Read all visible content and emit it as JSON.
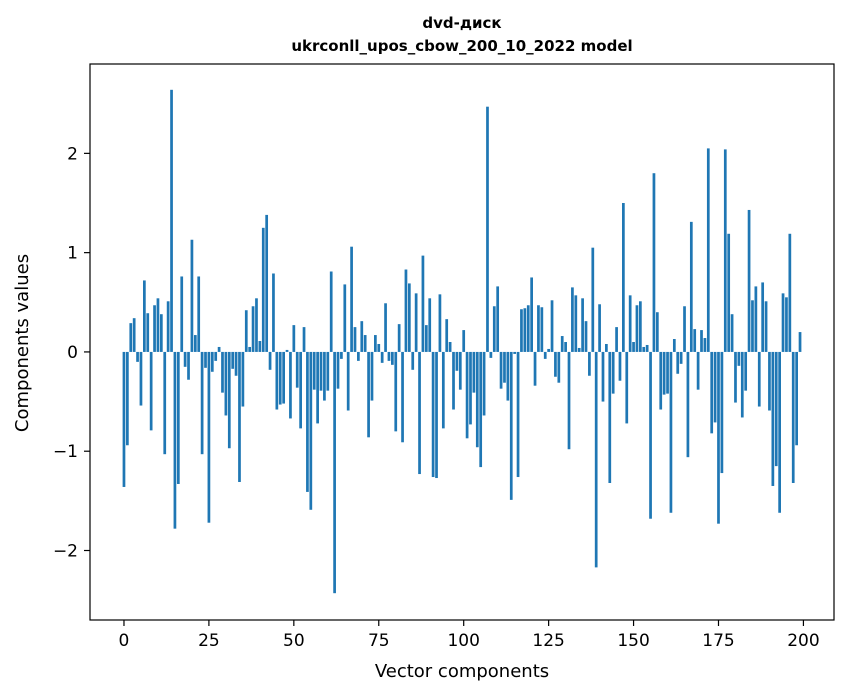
{
  "colors": {
    "bar": "#1f77b4",
    "axes": "#000000",
    "background": "#ffffff"
  },
  "chart_data": {
    "type": "bar",
    "title": "dvd-диск",
    "subtitle": "ukrconll_upos_cbow_200_10_2022 model",
    "xlabel": "Vector components",
    "ylabel": "Components values",
    "xlim": [
      -10,
      209
    ],
    "ylim": [
      -2.7,
      2.9
    ],
    "xticks": [
      0,
      25,
      50,
      75,
      100,
      125,
      150,
      175,
      200
    ],
    "yticks": [
      -2,
      -1,
      0,
      1,
      2
    ],
    "ytick_labels": [
      "−2",
      "−1",
      "0",
      "1",
      "2"
    ],
    "grid": false,
    "legend": "none",
    "x": [
      0,
      1,
      2,
      3,
      4,
      5,
      6,
      7,
      8,
      9,
      10,
      11,
      12,
      13,
      14,
      15,
      16,
      17,
      18,
      19,
      20,
      21,
      22,
      23,
      24,
      25,
      26,
      27,
      28,
      29,
      30,
      31,
      32,
      33,
      34,
      35,
      36,
      37,
      38,
      39,
      40,
      41,
      42,
      43,
      44,
      45,
      46,
      47,
      48,
      49,
      50,
      51,
      52,
      53,
      54,
      55,
      56,
      57,
      58,
      59,
      60,
      61,
      62,
      63,
      64,
      65,
      66,
      67,
      68,
      69,
      70,
      71,
      72,
      73,
      74,
      75,
      76,
      77,
      78,
      79,
      80,
      81,
      82,
      83,
      84,
      85,
      86,
      87,
      88,
      89,
      90,
      91,
      92,
      93,
      94,
      95,
      96,
      97,
      98,
      99,
      100,
      101,
      102,
      103,
      104,
      105,
      106,
      107,
      108,
      109,
      110,
      111,
      112,
      113,
      114,
      115,
      116,
      117,
      118,
      119,
      120,
      121,
      122,
      123,
      124,
      125,
      126,
      127,
      128,
      129,
      130,
      131,
      132,
      133,
      134,
      135,
      136,
      137,
      138,
      139,
      140,
      141,
      142,
      143,
      144,
      145,
      146,
      147,
      148,
      149,
      150,
      151,
      152,
      153,
      154,
      155,
      156,
      157,
      158,
      159,
      160,
      161,
      162,
      163,
      164,
      165,
      166,
      167,
      168,
      169,
      170,
      171,
      172,
      173,
      174,
      175,
      176,
      177,
      178,
      179,
      180,
      181,
      182,
      183,
      184,
      185,
      186,
      187,
      188,
      189,
      190,
      191,
      192,
      193,
      194,
      195,
      196,
      197,
      198,
      199
    ],
    "values": [
      -1.36,
      -0.94,
      0.29,
      0.34,
      -0.1,
      -0.54,
      0.72,
      0.39,
      -0.79,
      0.47,
      0.54,
      0.38,
      -1.03,
      0.51,
      2.64,
      -1.78,
      -1.33,
      0.76,
      -0.15,
      -0.28,
      1.13,
      0.17,
      0.76,
      -1.03,
      -0.16,
      -1.72,
      -0.2,
      -0.09,
      0.05,
      -0.41,
      -0.64,
      -0.97,
      -0.17,
      -0.24,
      -1.31,
      -0.55,
      0.42,
      0.05,
      0.46,
      0.54,
      0.11,
      1.25,
      1.38,
      -0.18,
      0.79,
      -0.58,
      -0.53,
      -0.52,
      0.02,
      -0.67,
      0.27,
      -0.36,
      -0.77,
      0.25,
      -1.41,
      -1.59,
      -0.38,
      -0.72,
      -0.39,
      -0.49,
      -0.39,
      0.81,
      -2.43,
      -0.37,
      -0.07,
      0.68,
      -0.59,
      1.06,
      0.25,
      -0.09,
      0.31,
      0.17,
      -0.86,
      -0.49,
      0.17,
      0.08,
      -0.11,
      0.49,
      -0.09,
      -0.13,
      -0.8,
      0.28,
      -0.91,
      0.83,
      0.69,
      -0.18,
      0.59,
      -1.23,
      0.97,
      0.27,
      0.54,
      -1.26,
      -1.27,
      0.58,
      -0.77,
      0.33,
      0.1,
      -0.58,
      -0.19,
      -0.38,
      0.22,
      -0.87,
      -0.73,
      -0.41,
      -0.96,
      -1.16,
      -0.64,
      2.47,
      -0.06,
      0.46,
      0.66,
      -0.37,
      -0.31,
      -0.49,
      -1.49,
      -0.02,
      -1.26,
      0.43,
      0.44,
      0.47,
      0.75,
      -0.34,
      0.47,
      0.45,
      -0.07,
      0.03,
      0.52,
      -0.25,
      -0.31,
      0.16,
      0.1,
      -0.98,
      0.65,
      0.57,
      0.04,
      0.54,
      0.31,
      -0.24,
      1.05,
      -2.17,
      0.48,
      -0.5,
      0.08,
      -1.32,
      -0.42,
      0.25,
      -0.29,
      1.5,
      -0.72,
      0.57,
      0.1,
      0.47,
      0.51,
      0.05,
      0.07,
      -1.68,
      1.8,
      0.4,
      -0.58,
      -0.43,
      -0.42,
      -1.62,
      0.13,
      -0.22,
      -0.12,
      0.46,
      -1.06,
      1.31,
      0.23,
      -0.38,
      0.22,
      0.14,
      2.05,
      -0.82,
      -0.71,
      -1.73,
      -1.22,
      2.04,
      1.19,
      0.38,
      -0.51,
      -0.14,
      -0.66,
      -0.39,
      1.43,
      0.52,
      0.66,
      -0.55,
      0.7,
      0.51,
      -0.59,
      -1.35,
      -1.15,
      -1.62,
      0.59,
      0.55,
      1.19,
      -1.32,
      -0.94,
      0.2
    ]
  }
}
